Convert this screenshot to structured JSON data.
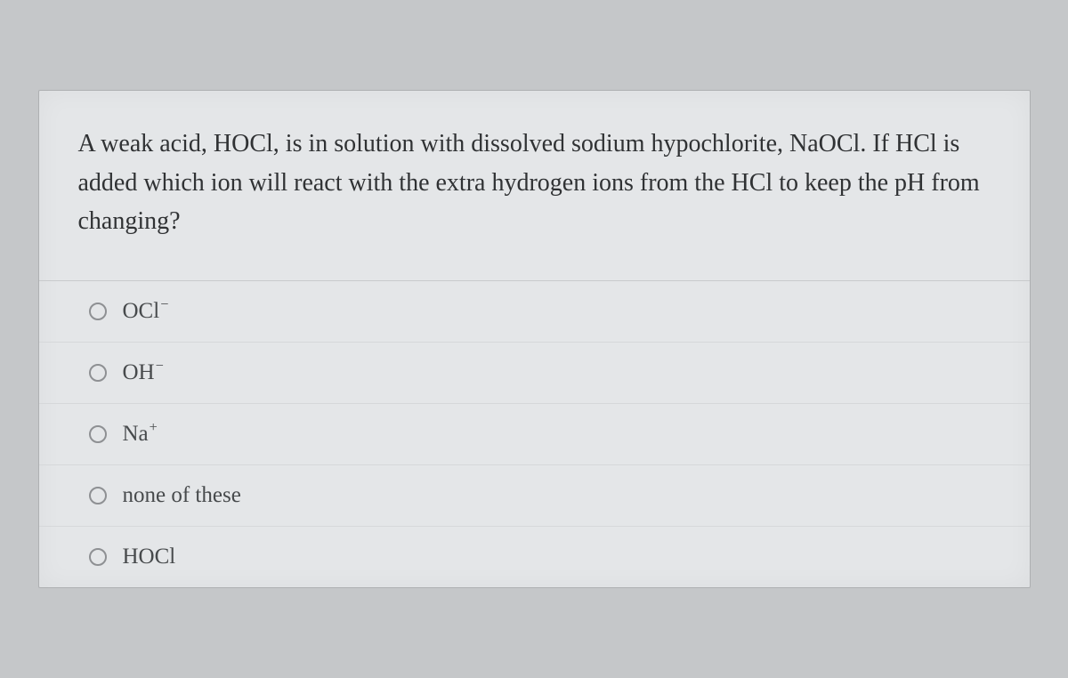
{
  "question": {
    "text": "A weak acid, HOCl, is in solution with dissolved sodium hypochlorite, NaOCl. If HCl is added which ion will react with the extra hydrogen ions from the HCl to keep the pH from changing?"
  },
  "options": [
    {
      "label": "OCl",
      "charge": "−"
    },
    {
      "label": "OH",
      "charge": "−"
    },
    {
      "label": "Na",
      "charge": "+"
    },
    {
      "label": "none of these",
      "charge": ""
    },
    {
      "label": "HOCl",
      "charge": ""
    }
  ],
  "styling": {
    "card_background": "#e4e6e8",
    "body_background": "#c5c7c9",
    "question_color": "#303234",
    "option_color": "#474a4c",
    "radio_border": "#8e9093",
    "divider_color": "#d6d8da",
    "question_fontsize": 28,
    "option_fontsize": 25,
    "font_family": "Georgia, serif"
  }
}
